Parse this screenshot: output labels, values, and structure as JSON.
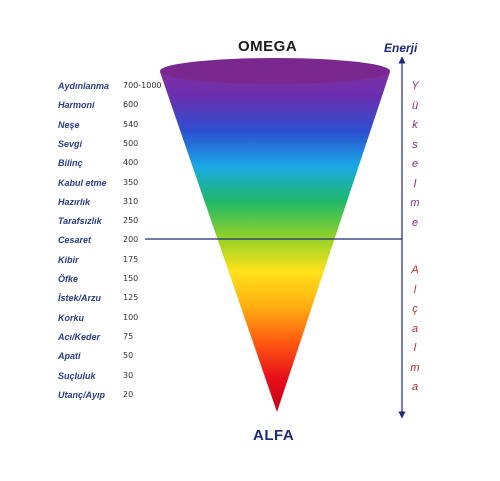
{
  "top_label": "OMEGA",
  "bottom_label": "ALFA",
  "axis_label": "Enerji",
  "rise_label": "Yükselme",
  "fall_label": "Alçalma",
  "levels": [
    {
      "name": "Aydınlanma",
      "value": "700-1000"
    },
    {
      "name": "Harmoni",
      "value": "600"
    },
    {
      "name": "Neşe",
      "value": "540"
    },
    {
      "name": "Sevgi",
      "value": "500"
    },
    {
      "name": "Bilinç",
      "value": "400"
    },
    {
      "name": "Kabul etme",
      "value": "350"
    },
    {
      "name": "Hazırlık",
      "value": "310"
    },
    {
      "name": "Tarafsızlık",
      "value": "250"
    },
    {
      "name": "Cesaret",
      "value": "200"
    },
    {
      "name": "Kibir",
      "value": "175"
    },
    {
      "name": "Öfke",
      "value": "150"
    },
    {
      "name": "İstek/Arzu",
      "value": "125"
    },
    {
      "name": "Korku",
      "value": "100"
    },
    {
      "name": "Acı/Keder",
      "value": "75"
    },
    {
      "name": "Apati",
      "value": "50"
    },
    {
      "name": "Suçluluk",
      "value": "30"
    },
    {
      "name": "Utanç/Ayıp",
      "value": "20"
    }
  ],
  "colors": {
    "label": "#2a3c86",
    "axis": "#1e2a78",
    "rise": "#8b2a7a",
    "fall": "#b02a2a",
    "spectrum": [
      "#8a2f9a",
      "#6a2fb0",
      "#2c4fd0",
      "#1aa8e6",
      "#1fb86a",
      "#8fd12a",
      "#ffe21a",
      "#ffae10",
      "#ff5a10",
      "#e8101a",
      "#c80018"
    ]
  },
  "divider_level": "Cesaret"
}
